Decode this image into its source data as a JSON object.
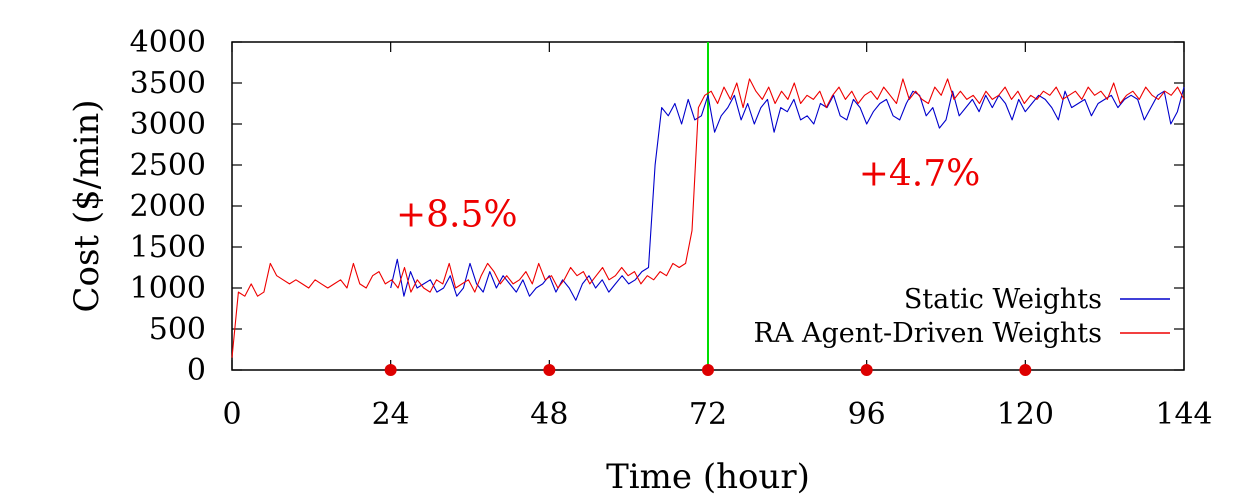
{
  "chart_data": {
    "type": "line",
    "title": "",
    "xlabel": "Time (hour)",
    "ylabel": "Cost ($/min)",
    "xlim": [
      0,
      144
    ],
    "ylim": [
      0,
      4000
    ],
    "x_ticks": [
      0,
      24,
      48,
      72,
      96,
      120,
      144
    ],
    "y_ticks": [
      0,
      500,
      1000,
      1500,
      2000,
      2500,
      3000,
      3500,
      4000
    ],
    "grid": false,
    "legend_position": "bottom-right",
    "vertical_line": {
      "x": 72,
      "color": "#00dd00"
    },
    "markers": {
      "x": [
        24,
        48,
        72,
        96,
        120
      ],
      "y": 0,
      "color": "#dd0000"
    },
    "annotations": [
      {
        "text": "+8.5%",
        "x": 34,
        "y": 1750,
        "color": "#ee0000"
      },
      {
        "text": "+4.7%",
        "x": 104,
        "y": 2250,
        "color": "#ee0000"
      }
    ],
    "series": [
      {
        "name": "Static Weights",
        "color": "#0000cc",
        "x_start": 24,
        "x_end": 144,
        "values": [
          1000,
          1350,
          900,
          1200,
          1000,
          1050,
          1100,
          950,
          1000,
          1150,
          900,
          1000,
          1300,
          1050,
          950,
          1200,
          1000,
          1150,
          1050,
          950,
          1100,
          900,
          1000,
          1050,
          1150,
          950,
          1100,
          1000,
          850,
          1050,
          1150,
          1000,
          1100,
          950,
          1050,
          1150,
          1050,
          1100,
          1200,
          1250,
          2500,
          3200,
          3100,
          3250,
          3000,
          3300,
          3050,
          3100,
          3350,
          2900,
          3100,
          3200,
          3350,
          3050,
          3250,
          3000,
          3200,
          3300,
          2900,
          3200,
          3150,
          3300,
          3050,
          3100,
          3000,
          3250,
          3200,
          3350,
          3100,
          3050,
          3300,
          3200,
          3000,
          3150,
          3250,
          3300,
          3100,
          3050,
          3250,
          3400,
          3350,
          3100,
          3200,
          2950,
          3050,
          3400,
          3100,
          3200,
          3300,
          3150,
          3350,
          3200,
          3350,
          3250,
          3050,
          3300,
          3150,
          3250,
          3350,
          3300,
          3200,
          3050,
          3400,
          3200,
          3250,
          3300,
          3100,
          3250,
          3300,
          3350,
          3200,
          3300,
          3350,
          3300,
          3050,
          3200,
          3350,
          3400,
          3000,
          3150,
          3450
        ]
      },
      {
        "name": "RA Agent-Driven Weights",
        "color": "#ee0000",
        "x_start": 0,
        "x_end": 144,
        "values": [
          150,
          950,
          900,
          1050,
          900,
          950,
          1300,
          1150,
          1100,
          1050,
          1100,
          1050,
          1000,
          1100,
          1050,
          1000,
          1050,
          1100,
          1000,
          1300,
          1050,
          1000,
          1150,
          1200,
          1050,
          1100,
          1000,
          1250,
          950,
          1100,
          1000,
          950,
          1100,
          1050,
          1300,
          1000,
          1050,
          1100,
          950,
          1150,
          1300,
          1200,
          1050,
          1150,
          1050,
          1100,
          1200,
          1050,
          1300,
          1100,
          1150,
          1000,
          1100,
          1250,
          1150,
          1200,
          1050,
          1150,
          1250,
          1100,
          1150,
          1250,
          1150,
          1200,
          1050,
          1150,
          1100,
          1200,
          1150,
          1300,
          1250,
          1300,
          1700,
          3200,
          3350,
          3400,
          3250,
          3450,
          3300,
          3500,
          3200,
          3550,
          3400,
          3300,
          3450,
          3250,
          3400,
          3300,
          3500,
          3250,
          3350,
          3300,
          3400,
          3200,
          3350,
          3450,
          3300,
          3400,
          3250,
          3350,
          3400,
          3300,
          3450,
          3350,
          3250,
          3550,
          3300,
          3400,
          3300,
          3250,
          3450,
          3350,
          3550,
          3300,
          3400,
          3300,
          3350,
          3250,
          3400,
          3300,
          3350,
          3450,
          3300,
          3400,
          3250,
          3350,
          3300,
          3400,
          3350,
          3450,
          3300,
          3350,
          3400,
          3300,
          3450,
          3350,
          3400,
          3300,
          3500,
          3250,
          3350,
          3400,
          3300,
          3450,
          3350,
          3300,
          3400,
          3350,
          3450,
          3300
        ]
      }
    ]
  }
}
